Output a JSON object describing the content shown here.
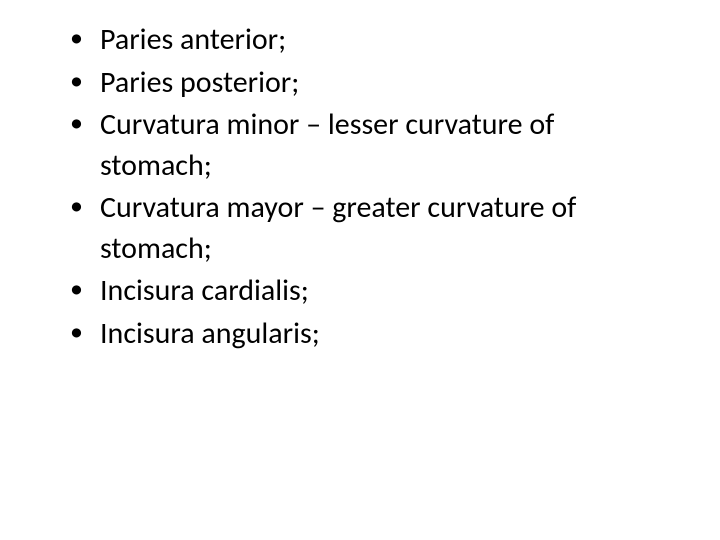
{
  "slide": {
    "bullets": [
      {
        "text": "Paries anterior;"
      },
      {
        "text": "Paries posterior;"
      },
      {
        "text": "Curvatura minor – lesser curvature of stomach;"
      },
      {
        "text": "Curvatura mayor – greater curvature of stomach;"
      },
      {
        "text": "Incisura cardialis;"
      },
      {
        "text": "Incisura angularis;"
      }
    ],
    "text_color": "#000000",
    "background_color": "#ffffff",
    "font_size_pt": 30,
    "line_height": 1.35
  }
}
